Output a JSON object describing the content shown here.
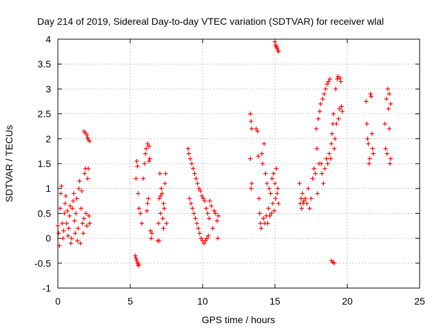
{
  "chart_data": {
    "type": "scatter",
    "title": "Day 214 of 2019, Sidereal Day-to-day VTEC variation (SDTVAR) for receiver wlal",
    "xlabel": "GPS time / hours",
    "ylabel": "SDTVAR / TECUs",
    "xlim": [
      0,
      25
    ],
    "ylim": [
      -1,
      4
    ],
    "xticks": [
      "0",
      "5",
      "10",
      "15",
      "20",
      "25"
    ],
    "yticks": [
      "-1",
      "-0.5",
      "0",
      "0.5",
      "1",
      "1.5",
      "2",
      "2.5",
      "3",
      "3.5",
      "4"
    ],
    "grid": true,
    "marker": "+",
    "color": "#ff0000",
    "series": [
      {
        "name": "SDTVAR",
        "points": [
          [
            0.0,
            0.25
          ],
          [
            0.05,
            0.1
          ],
          [
            0.1,
            -0.15
          ],
          [
            0.15,
            0.6
          ],
          [
            0.2,
            0.9
          ],
          [
            0.25,
            1.05
          ],
          [
            0.3,
            0.3
          ],
          [
            0.35,
            0.0
          ],
          [
            0.4,
            0.15
          ],
          [
            0.45,
            0.5
          ],
          [
            0.5,
            0.7
          ],
          [
            0.55,
            0.85
          ],
          [
            0.6,
            0.3
          ],
          [
            0.65,
            0.55
          ],
          [
            0.7,
            0.05
          ],
          [
            0.75,
            0.2
          ],
          [
            0.8,
            0.45
          ],
          [
            0.85,
            0.65
          ],
          [
            0.9,
            -0.1
          ],
          [
            0.95,
            0.0
          ],
          [
            1.0,
            0.6
          ],
          [
            1.05,
            0.75
          ],
          [
            1.1,
            0.9
          ],
          [
            1.15,
            0.35
          ],
          [
            1.2,
            0.1
          ],
          [
            1.25,
            0.5
          ],
          [
            1.3,
            0.8
          ],
          [
            1.35,
            -0.05
          ],
          [
            1.4,
            0.2
          ],
          [
            1.45,
            1.0
          ],
          [
            1.5,
            1.15
          ],
          [
            1.55,
            -0.1
          ],
          [
            1.6,
            0.6
          ],
          [
            1.65,
            0.95
          ],
          [
            1.7,
            0.3
          ],
          [
            1.75,
            0.1
          ],
          [
            1.8,
            0.4
          ],
          [
            1.85,
            1.3
          ],
          [
            1.9,
            1.4
          ],
          [
            1.95,
            0.5
          ],
          [
            2.0,
            0.25
          ],
          [
            2.05,
            1.2
          ],
          [
            2.1,
            1.4
          ],
          [
            2.15,
            0.45
          ],
          [
            2.2,
            0.3
          ],
          [
            1.8,
            2.15
          ],
          [
            1.9,
            2.12
          ],
          [
            2.0,
            2.08
          ],
          [
            2.05,
            2.02
          ],
          [
            2.1,
            1.98
          ],
          [
            2.2,
            1.95
          ],
          [
            5.35,
            -0.35
          ],
          [
            5.4,
            -0.4
          ],
          [
            5.45,
            -0.45
          ],
          [
            5.5,
            -0.5
          ],
          [
            5.55,
            -0.55
          ],
          [
            5.6,
            -0.52
          ],
          [
            5.4,
            1.2
          ],
          [
            5.45,
            1.55
          ],
          [
            5.5,
            1.45
          ],
          [
            5.55,
            0.9
          ],
          [
            5.6,
            0.6
          ],
          [
            5.7,
            0.5
          ],
          [
            5.8,
            0.3
          ],
          [
            5.9,
            1.2
          ],
          [
            6.0,
            1.5
          ],
          [
            6.05,
            1.7
          ],
          [
            6.1,
            1.8
          ],
          [
            6.15,
            0.55
          ],
          [
            6.2,
            0.7
          ],
          [
            6.25,
            0.8
          ],
          [
            6.3,
            1.85
          ],
          [
            6.35,
            1.6
          ],
          [
            6.4,
            0.15
          ],
          [
            6.45,
            0.0
          ],
          [
            6.5,
            0.1
          ],
          [
            6.2,
            1.9
          ],
          [
            6.3,
            1.55
          ],
          [
            6.9,
            -0.05
          ],
          [
            6.95,
            0.3
          ],
          [
            7.0,
            0.8
          ],
          [
            7.05,
            1.3
          ],
          [
            7.1,
            0.5
          ],
          [
            7.15,
            1.0
          ],
          [
            7.2,
            0.9
          ],
          [
            7.25,
            0.4
          ],
          [
            7.3,
            0.2
          ],
          [
            7.35,
            0.6
          ],
          [
            7.4,
            1.1
          ],
          [
            7.45,
            1.3
          ],
          [
            7.5,
            0.3
          ],
          [
            7.0,
            -0.05
          ],
          [
            7.1,
            0.85
          ],
          [
            7.3,
            0.7
          ],
          [
            9.0,
            1.8
          ],
          [
            9.05,
            1.7
          ],
          [
            9.1,
            0.8
          ],
          [
            9.15,
            1.6
          ],
          [
            9.2,
            0.7
          ],
          [
            9.25,
            1.5
          ],
          [
            9.3,
            0.6
          ],
          [
            9.35,
            1.4
          ],
          [
            9.4,
            0.5
          ],
          [
            9.45,
            1.3
          ],
          [
            9.5,
            0.4
          ],
          [
            9.55,
            1.2
          ],
          [
            9.6,
            0.3
          ],
          [
            9.65,
            1.1
          ],
          [
            9.7,
            0.2
          ],
          [
            9.75,
            1.0
          ],
          [
            9.8,
            0.1
          ],
          [
            9.85,
            0.95
          ],
          [
            9.9,
            0.0
          ],
          [
            9.95,
            0.85
          ],
          [
            10.0,
            -0.05
          ],
          [
            10.05,
            0.8
          ],
          [
            10.1,
            -0.1
          ],
          [
            10.15,
            0.75
          ],
          [
            10.2,
            -0.05
          ],
          [
            10.25,
            0.6
          ],
          [
            10.3,
            0.0
          ],
          [
            10.35,
            0.5
          ],
          [
            10.4,
            0.05
          ],
          [
            10.45,
            0.4
          ],
          [
            10.5,
            0.75
          ],
          [
            10.6,
            0.65
          ],
          [
            10.7,
            0.2
          ],
          [
            10.8,
            0.55
          ],
          [
            10.9,
            0.5
          ],
          [
            11.0,
            0.35
          ],
          [
            11.05,
            0.0
          ],
          [
            11.1,
            0.45
          ],
          [
            13.3,
            2.5
          ],
          [
            13.35,
            2.35
          ],
          [
            13.4,
            2.2
          ],
          [
            13.3,
            1.6
          ],
          [
            13.35,
            1.0
          ],
          [
            13.4,
            1.1
          ],
          [
            13.7,
            2.2
          ],
          [
            13.8,
            2.15
          ],
          [
            13.85,
            1.65
          ],
          [
            13.9,
            0.8
          ],
          [
            13.95,
            0.5
          ],
          [
            14.0,
            0.3
          ],
          [
            14.05,
            0.2
          ],
          [
            14.1,
            1.7
          ],
          [
            14.15,
            1.5
          ],
          [
            14.2,
            0.4
          ],
          [
            14.25,
            1.9
          ],
          [
            14.3,
            0.3
          ],
          [
            14.35,
            1.3
          ],
          [
            14.4,
            0.45
          ],
          [
            14.45,
            1.1
          ],
          [
            14.5,
            0.3
          ],
          [
            14.55,
            0.6
          ],
          [
            14.6,
            1.0
          ],
          [
            14.65,
            0.45
          ],
          [
            14.7,
            0.9
          ],
          [
            14.75,
            0.5
          ],
          [
            14.8,
            1.2
          ],
          [
            14.85,
            0.7
          ],
          [
            14.9,
            1.3
          ],
          [
            14.95,
            0.55
          ],
          [
            15.0,
            1.1
          ],
          [
            15.05,
            0.8
          ],
          [
            15.1,
            1.4
          ],
          [
            15.15,
            0.9
          ],
          [
            15.2,
            1.0
          ],
          [
            15.25,
            0.7
          ],
          [
            15.0,
            3.95
          ],
          [
            15.05,
            3.88
          ],
          [
            15.1,
            3.85
          ],
          [
            15.15,
            3.82
          ],
          [
            15.2,
            3.78
          ],
          [
            15.25,
            3.75
          ],
          [
            16.7,
            1.1
          ],
          [
            16.75,
            0.7
          ],
          [
            16.8,
            0.8
          ],
          [
            16.85,
            0.6
          ],
          [
            16.9,
            0.9
          ],
          [
            16.95,
            0.7
          ],
          [
            17.0,
            0.75
          ],
          [
            17.1,
            0.8
          ],
          [
            17.2,
            0.7
          ],
          [
            17.3,
            1.0
          ],
          [
            17.4,
            0.6
          ],
          [
            17.5,
            0.8
          ],
          [
            17.6,
            1.2
          ],
          [
            17.7,
            1.4
          ],
          [
            17.8,
            1.3
          ],
          [
            17.85,
            2.2
          ],
          [
            17.9,
            1.8
          ],
          [
            17.95,
            0.9
          ],
          [
            18.0,
            2.4
          ],
          [
            18.05,
            1.5
          ],
          [
            18.1,
            2.55
          ],
          [
            18.15,
            2.7
          ],
          [
            18.2,
            1.5
          ],
          [
            18.25,
            1.3
          ],
          [
            18.3,
            2.8
          ],
          [
            18.35,
            1.1
          ],
          [
            18.4,
            2.9
          ],
          [
            18.45,
            1.4
          ],
          [
            18.5,
            3.0
          ],
          [
            18.55,
            1.6
          ],
          [
            18.6,
            3.1
          ],
          [
            18.65,
            1.5
          ],
          [
            18.7,
            3.15
          ],
          [
            18.75,
            1.7
          ],
          [
            18.8,
            3.2
          ],
          [
            18.85,
            1.6
          ],
          [
            18.9,
            1.9
          ],
          [
            18.95,
            2.1
          ],
          [
            19.0,
            2.3
          ],
          [
            19.05,
            2.5
          ],
          [
            19.1,
            1.8
          ],
          [
            19.15,
            2.0
          ],
          [
            19.2,
            3.0
          ],
          [
            19.25,
            2.3
          ],
          [
            19.3,
            3.2
          ],
          [
            19.35,
            3.25
          ],
          [
            19.4,
            2.4
          ],
          [
            19.45,
            2.6
          ],
          [
            19.5,
            3.22
          ],
          [
            19.55,
            3.15
          ],
          [
            19.6,
            2.65
          ],
          [
            19.65,
            2.55
          ],
          [
            18.9,
            -0.45
          ],
          [
            19.0,
            -0.48
          ],
          [
            19.1,
            -0.5
          ],
          [
            21.3,
            2.75
          ],
          [
            21.35,
            2.3
          ],
          [
            21.4,
            2.0
          ],
          [
            21.45,
            1.9
          ],
          [
            21.5,
            1.5
          ],
          [
            21.55,
            1.6
          ],
          [
            21.6,
            2.9
          ],
          [
            21.65,
            2.85
          ],
          [
            21.7,
            2.1
          ],
          [
            21.75,
            1.8
          ],
          [
            21.8,
            1.7
          ],
          [
            22.6,
            2.3
          ],
          [
            22.65,
            1.8
          ],
          [
            22.7,
            2.8
          ],
          [
            22.75,
            1.7
          ],
          [
            22.8,
            3.0
          ],
          [
            22.85,
            2.6
          ],
          [
            22.9,
            2.2
          ],
          [
            22.95,
            1.5
          ],
          [
            23.0,
            2.7
          ],
          [
            22.9,
            2.9
          ],
          [
            23.0,
            1.6
          ]
        ]
      }
    ]
  }
}
